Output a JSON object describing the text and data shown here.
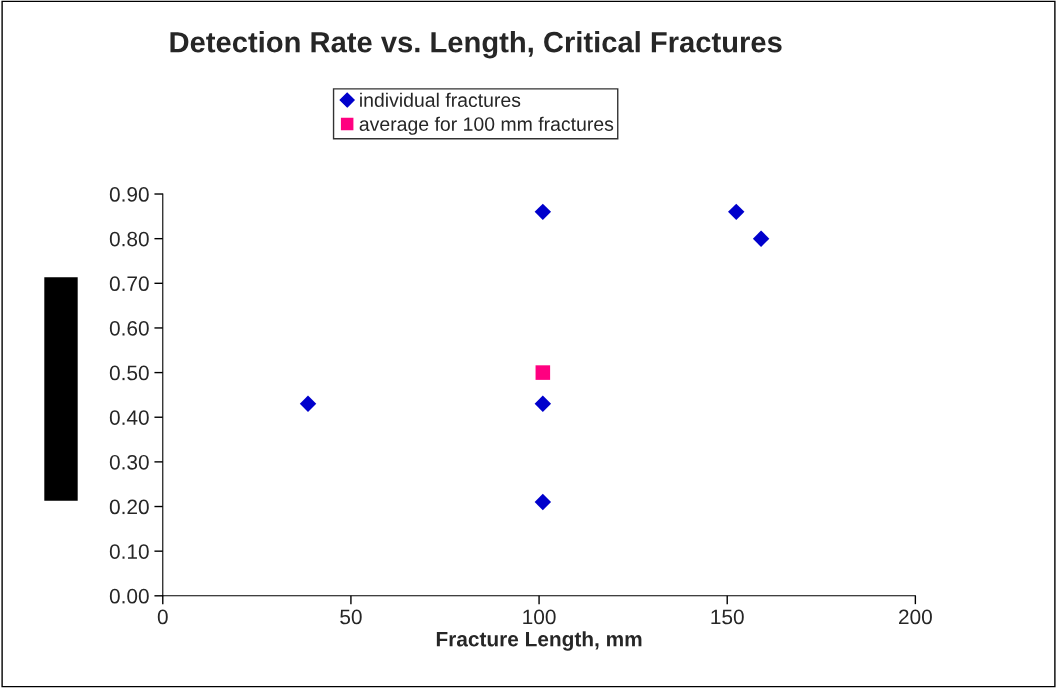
{
  "chart_data": {
    "type": "scatter",
    "title": "Detection Rate vs. Length, Critical Fractures",
    "xlabel": "Fracture Length, mm",
    "series": [
      {
        "name": "individual fractures",
        "color": "#0000cc",
        "marker": "diamond",
        "x": [
          38.6,
          101,
          101,
          101,
          152.4,
          159
        ],
        "values": [
          0.43,
          0.86,
          0.43,
          0.21,
          0.86,
          0.8
        ]
      },
      {
        "name": "average for 100 mm fractures",
        "color": "#ff0080",
        "marker": "square",
        "x": [
          101
        ],
        "values": [
          0.5
        ]
      }
    ],
    "xlim": [
      0,
      200
    ],
    "xticks": [
      0,
      50,
      100,
      150,
      200
    ],
    "ylim": [
      0,
      0.9
    ],
    "yticks": [
      {
        "value": 0,
        "label": "0.00"
      },
      {
        "value": 0.1,
        "label": "0.10"
      },
      {
        "value": 0.2,
        "label": "0.20"
      },
      {
        "value": 0.3,
        "label": "0.30"
      },
      {
        "value": 0.4,
        "label": "0.40"
      },
      {
        "value": 0.5,
        "label": "0.50"
      },
      {
        "value": 0.6,
        "label": "0.60"
      },
      {
        "value": 0.7,
        "label": "0.70"
      },
      {
        "value": 0.8,
        "label": "0.80"
      },
      {
        "value": 0.9,
        "label": "0.90"
      }
    ],
    "grid": false,
    "legend": "top"
  }
}
